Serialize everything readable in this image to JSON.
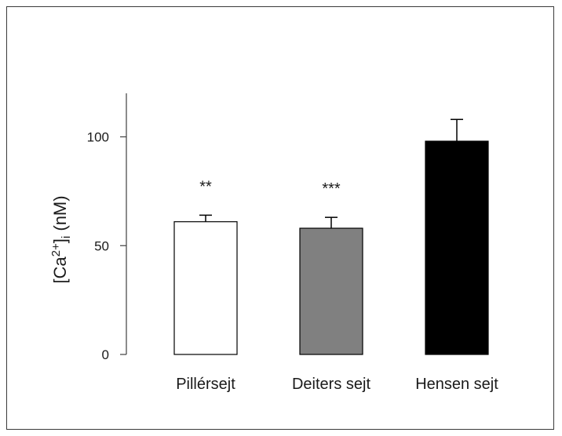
{
  "chart_data": {
    "type": "bar",
    "title": "",
    "xlabel": "",
    "ylabel": {
      "prefix": "[Ca",
      "superscript": "2+",
      "close": "]",
      "subscript": "i",
      "unit": " (nM)"
    },
    "categories": [
      "Pillérsejt",
      "Deiters sejt",
      "Hensen sejt"
    ],
    "values": [
      61,
      58,
      98
    ],
    "errors": [
      3,
      5,
      10
    ],
    "significance": [
      "**",
      "***",
      ""
    ],
    "ylim": [
      0,
      120
    ],
    "yticks": [
      0,
      50,
      100
    ],
    "ytick_labels": [
      "0",
      "50",
      "100"
    ],
    "grid": false,
    "legend": "none",
    "colors": {
      "bars": [
        "#ffffff",
        "#808080",
        "#000000"
      ],
      "bar_stroke": "#000000",
      "axis": "#404040"
    }
  }
}
